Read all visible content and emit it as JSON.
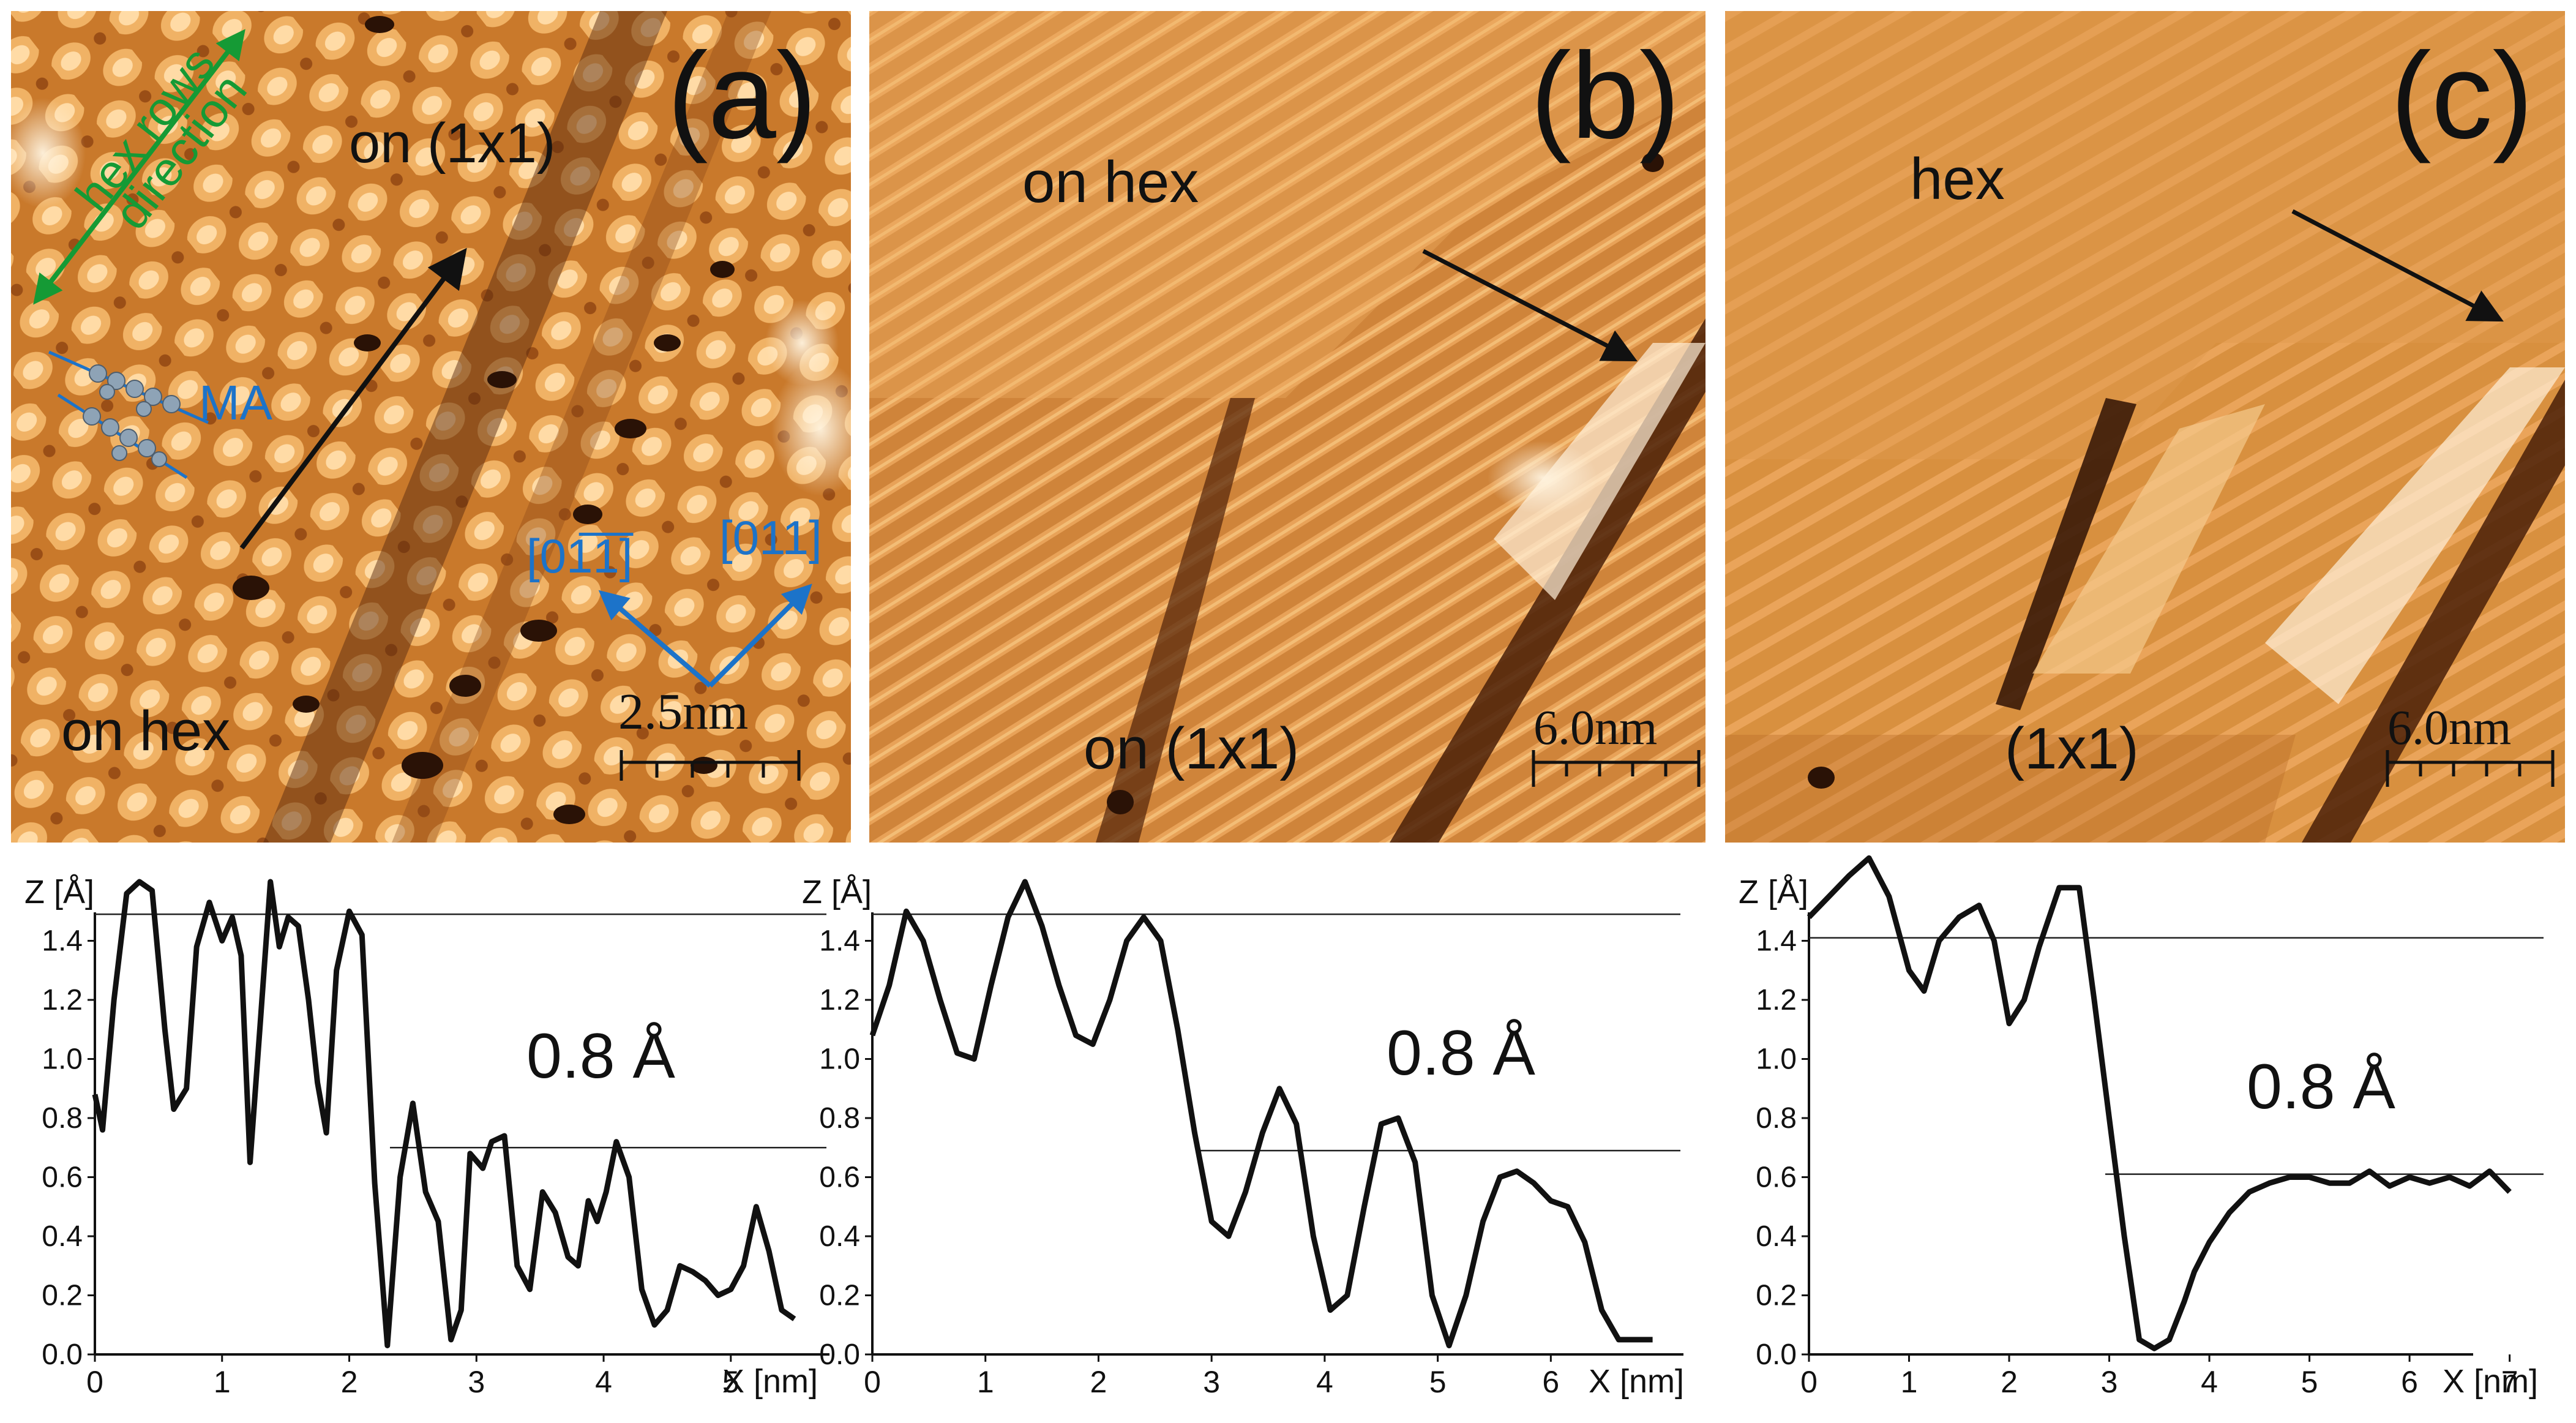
{
  "panels": [
    {
      "id": "a",
      "letter": "(a)",
      "labels": {
        "top": "on (1x1)",
        "bottom": "on hex",
        "ma": "MA",
        "hex_rows": "hex rows",
        "direction": "direction",
        "dir1": "[01̅1̅]",
        "dir2": "[011]"
      },
      "scale_label": "2.5nm",
      "profile_annotation": "0.8 Å",
      "colors": {
        "surface": "#c9792b",
        "bright": "#fff0d8",
        "dark": "#3a1a08",
        "arrow": "#111111",
        "green": "#159a35",
        "blue": "#1c73c9"
      }
    },
    {
      "id": "b",
      "letter": "(b)",
      "labels": {
        "top": "on hex",
        "bottom": "on (1x1)"
      },
      "scale_label": "6.0nm",
      "profile_annotation": "0.8 Å"
    },
    {
      "id": "c",
      "letter": "(c)",
      "labels": {
        "top": "hex",
        "bottom": "(1x1)"
      },
      "scale_label": "6.0nm",
      "profile_annotation": "0.8 Å"
    }
  ],
  "chart_data": [
    {
      "type": "line",
      "xlabel": "X [nm]",
      "ylabel": "Z [Å]",
      "xlim": [
        0,
        5.8
      ],
      "ylim": [
        0,
        1.6
      ],
      "xticks": [
        0,
        1,
        2,
        3,
        4,
        5
      ],
      "yticks": [
        0.0,
        0.2,
        0.4,
        0.6,
        0.8,
        1.0,
        1.2,
        1.4
      ],
      "reference_lines": [
        1.49,
        0.7
      ],
      "x": [
        0,
        0.06,
        0.15,
        0.25,
        0.35,
        0.45,
        0.55,
        0.62,
        0.72,
        0.8,
        0.9,
        1.0,
        1.08,
        1.15,
        1.22,
        1.3,
        1.38,
        1.45,
        1.52,
        1.6,
        1.68,
        1.75,
        1.82,
        1.9,
        2.0,
        2.1,
        2.2,
        2.3,
        2.4,
        2.5,
        2.6,
        2.7,
        2.8,
        2.88,
        2.95,
        3.05,
        3.12,
        3.22,
        3.32,
        3.42,
        3.52,
        3.62,
        3.72,
        3.8,
        3.88,
        3.95,
        4.02,
        4.1,
        4.2,
        4.3,
        4.4,
        4.5,
        4.6,
        4.7,
        4.8,
        4.9,
        5.0,
        5.1,
        5.2,
        5.3,
        5.4,
        5.5
      ],
      "y": [
        0.88,
        0.76,
        1.2,
        1.56,
        1.6,
        1.57,
        1.1,
        0.83,
        0.9,
        1.38,
        1.53,
        1.4,
        1.48,
        1.35,
        0.65,
        1.12,
        1.6,
        1.38,
        1.48,
        1.45,
        1.2,
        0.92,
        0.75,
        1.3,
        1.5,
        1.42,
        0.58,
        0.03,
        0.6,
        0.85,
        0.55,
        0.45,
        0.05,
        0.15,
        0.68,
        0.63,
        0.72,
        0.74,
        0.3,
        0.22,
        0.55,
        0.48,
        0.33,
        0.3,
        0.52,
        0.45,
        0.55,
        0.72,
        0.6,
        0.22,
        0.1,
        0.15,
        0.3,
        0.28,
        0.25,
        0.2,
        0.22,
        0.3,
        0.5,
        0.35,
        0.15,
        0.12
      ],
      "annotation": "0.8 Å"
    },
    {
      "type": "line",
      "xlabel": "X [nm]",
      "ylabel": "Z [Å]",
      "xlim": [
        0,
        7.2
      ],
      "ylim": [
        0,
        1.6
      ],
      "xticks": [
        0,
        1,
        2,
        3,
        4,
        5,
        6
      ],
      "yticks": [
        0.0,
        0.2,
        0.4,
        0.6,
        0.8,
        1.0,
        1.2,
        1.4
      ],
      "reference_lines": [
        1.49,
        0.69
      ],
      "x": [
        0,
        0.15,
        0.3,
        0.45,
        0.6,
        0.75,
        0.9,
        1.05,
        1.2,
        1.35,
        1.5,
        1.65,
        1.8,
        1.95,
        2.1,
        2.25,
        2.4,
        2.55,
        2.7,
        2.85,
        3.0,
        3.15,
        3.3,
        3.45,
        3.6,
        3.75,
        3.9,
        4.05,
        4.2,
        4.35,
        4.5,
        4.65,
        4.8,
        4.95,
        5.1,
        5.25,
        5.4,
        5.55,
        5.7,
        5.85,
        6.0,
        6.15,
        6.3,
        6.45,
        6.6,
        6.75,
        6.9
      ],
      "y": [
        1.08,
        1.25,
        1.5,
        1.4,
        1.2,
        1.02,
        1.0,
        1.25,
        1.48,
        1.6,
        1.45,
        1.25,
        1.08,
        1.05,
        1.2,
        1.4,
        1.48,
        1.4,
        1.1,
        0.75,
        0.45,
        0.4,
        0.55,
        0.75,
        0.9,
        0.78,
        0.4,
        0.15,
        0.2,
        0.5,
        0.78,
        0.8,
        0.65,
        0.2,
        0.03,
        0.2,
        0.45,
        0.6,
        0.62,
        0.58,
        0.52,
        0.5,
        0.38,
        0.15,
        0.05,
        0.05,
        0.05
      ],
      "annotation": "0.8 Å"
    },
    {
      "type": "line",
      "xlabel": "X [nm]",
      "ylabel": "Z [Å]",
      "xlim": [
        0,
        7.4
      ],
      "ylim": [
        0,
        1.6
      ],
      "xticks": [
        0,
        1,
        2,
        3,
        4,
        5,
        6,
        7
      ],
      "yticks": [
        0.0,
        0.2,
        0.4,
        0.6,
        0.8,
        1.0,
        1.2,
        1.4
      ],
      "reference_lines": [
        1.41,
        0.61
      ],
      "x": [
        0,
        0.2,
        0.4,
        0.6,
        0.8,
        1.0,
        1.15,
        1.3,
        1.5,
        1.7,
        1.85,
        2.0,
        2.15,
        2.3,
        2.5,
        2.7,
        2.85,
        3.0,
        3.15,
        3.3,
        3.45,
        3.6,
        3.75,
        3.85,
        4.0,
        4.2,
        4.4,
        4.6,
        4.8,
        5.0,
        5.2,
        5.4,
        5.6,
        5.8,
        6.0,
        6.2,
        6.4,
        6.6,
        6.8,
        7.0
      ],
      "y": [
        1.48,
        1.55,
        1.62,
        1.68,
        1.55,
        1.3,
        1.23,
        1.4,
        1.48,
        1.52,
        1.4,
        1.12,
        1.2,
        1.38,
        1.58,
        1.58,
        1.2,
        0.8,
        0.4,
        0.05,
        0.02,
        0.05,
        0.18,
        0.28,
        0.38,
        0.48,
        0.55,
        0.58,
        0.6,
        0.6,
        0.58,
        0.58,
        0.62,
        0.57,
        0.6,
        0.58,
        0.6,
        0.57,
        0.62,
        0.55
      ],
      "annotation": "0.8 Å"
    }
  ]
}
